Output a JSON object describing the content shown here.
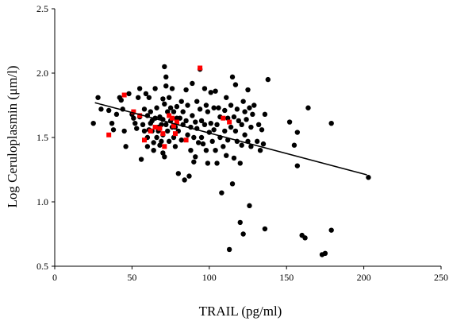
{
  "chart_data": {
    "type": "scatter",
    "title": "",
    "xlabel": "TRAIL (pg/ml)",
    "ylabel": "Log Ceruloplasmin (μm/l)",
    "xlim": [
      0,
      250
    ],
    "ylim": [
      0.5,
      2.5
    ],
    "x_ticks": [
      "0",
      "50",
      "100",
      "150",
      "200",
      "250"
    ],
    "y_ticks": [
      "0.5",
      "1.0",
      "1.5",
      "2.0",
      "2.5"
    ],
    "x_tick_values": [
      0,
      50,
      100,
      150,
      200,
      250
    ],
    "y_tick_values": [
      0.5,
      1.0,
      1.5,
      2.0,
      2.5
    ],
    "grid": false,
    "colors": {
      "black_series": "#000000",
      "red_series": "#ff0000"
    },
    "trendline": {
      "x": [
        26,
        202
      ],
      "y": [
        1.77,
        1.21
      ]
    },
    "series": [
      {
        "color": "#000000",
        "marker": "circle",
        "points": [
          [
            25,
            1.61
          ],
          [
            28,
            1.81
          ],
          [
            30,
            1.72
          ],
          [
            35,
            1.71
          ],
          [
            37,
            1.61
          ],
          [
            38,
            1.56
          ],
          [
            40,
            1.68
          ],
          [
            42,
            1.81
          ],
          [
            43,
            1.79
          ],
          [
            44,
            1.72
          ],
          [
            45,
            1.55
          ],
          [
            46,
            1.43
          ],
          [
            48,
            1.84
          ],
          [
            50,
            1.68
          ],
          [
            51,
            1.65
          ],
          [
            52,
            1.61
          ],
          [
            53,
            1.57
          ],
          [
            54,
            1.81
          ],
          [
            55,
            1.88
          ],
          [
            55,
            1.66
          ],
          [
            56,
            1.33
          ],
          [
            57,
            1.6
          ],
          [
            58,
            1.72
          ],
          [
            58,
            1.55
          ],
          [
            59,
            1.84
          ],
          [
            60,
            1.67
          ],
          [
            60,
            1.5
          ],
          [
            60,
            1.43
          ],
          [
            61,
            1.81
          ],
          [
            61,
            1.56
          ],
          [
            62,
            1.7
          ],
          [
            62,
            1.61
          ],
          [
            63,
            1.63
          ],
          [
            63,
            1.55
          ],
          [
            64,
            1.46
          ],
          [
            64,
            1.4
          ],
          [
            65,
            1.88
          ],
          [
            65,
            1.65
          ],
          [
            66,
            1.73
          ],
          [
            66,
            1.5
          ],
          [
            67,
            1.58
          ],
          [
            67,
            1.55
          ],
          [
            68,
            1.66
          ],
          [
            68,
            1.44
          ],
          [
            69,
            1.6
          ],
          [
            69,
            1.47
          ],
          [
            70,
            1.8
          ],
          [
            70,
            1.64
          ],
          [
            70,
            1.52
          ],
          [
            70,
            1.38
          ],
          [
            71,
            2.05
          ],
          [
            71,
            1.76
          ],
          [
            71,
            1.35
          ],
          [
            72,
            1.97
          ],
          [
            72,
            1.9
          ],
          [
            72,
            1.6
          ],
          [
            73,
            1.7
          ],
          [
            73,
            1.55
          ],
          [
            74,
            1.81
          ],
          [
            74,
            1.47
          ],
          [
            75,
            1.73
          ],
          [
            75,
            1.63
          ],
          [
            76,
            1.88
          ],
          [
            76,
            1.58
          ],
          [
            77,
            1.7
          ],
          [
            77,
            1.5
          ],
          [
            78,
            1.58
          ],
          [
            78,
            1.43
          ],
          [
            79,
            1.74
          ],
          [
            79,
            1.65
          ],
          [
            80,
            1.55
          ],
          [
            80,
            1.22
          ],
          [
            81,
            1.65
          ],
          [
            82,
            1.78
          ],
          [
            82,
            1.48
          ],
          [
            83,
            1.7
          ],
          [
            83,
            1.6
          ],
          [
            84,
            1.17
          ],
          [
            85,
            1.87
          ],
          [
            85,
            1.63
          ],
          [
            86,
            1.75
          ],
          [
            86,
            1.52
          ],
          [
            87,
            1.2
          ],
          [
            88,
            1.58
          ],
          [
            88,
            1.4
          ],
          [
            89,
            1.92
          ],
          [
            89,
            1.67
          ],
          [
            90,
            1.5
          ],
          [
            90,
            1.31
          ],
          [
            91,
            1.62
          ],
          [
            91,
            1.35
          ],
          [
            92,
            1.78
          ],
          [
            92,
            1.57
          ],
          [
            93,
            1.46
          ],
          [
            94,
            2.03
          ],
          [
            94,
            1.72
          ],
          [
            95,
            1.63
          ],
          [
            95,
            1.5
          ],
          [
            96,
            1.45
          ],
          [
            97,
            1.88
          ],
          [
            97,
            1.6
          ],
          [
            98,
            1.75
          ],
          [
            98,
            1.4
          ],
          [
            99,
            1.7
          ],
          [
            99,
            1.3
          ],
          [
            100,
            1.54
          ],
          [
            101,
            1.85
          ],
          [
            101,
            1.61
          ],
          [
            102,
            1.47
          ],
          [
            103,
            1.73
          ],
          [
            103,
            1.56
          ],
          [
            104,
            1.86
          ],
          [
            104,
            1.4
          ],
          [
            105,
            1.6
          ],
          [
            105,
            1.3
          ],
          [
            106,
            1.73
          ],
          [
            107,
            1.66
          ],
          [
            107,
            1.5
          ],
          [
            108,
            1.07
          ],
          [
            109,
            1.43
          ],
          [
            110,
            1.71
          ],
          [
            110,
            1.55
          ],
          [
            111,
            1.81
          ],
          [
            111,
            1.36
          ],
          [
            112,
            1.65
          ],
          [
            112,
            1.48
          ],
          [
            113,
            0.63
          ],
          [
            114,
            1.75
          ],
          [
            114,
            1.58
          ],
          [
            115,
            1.97
          ],
          [
            115,
            1.14
          ],
          [
            116,
            1.66
          ],
          [
            116,
            1.34
          ],
          [
            117,
            1.91
          ],
          [
            117,
            1.55
          ],
          [
            118,
            1.72
          ],
          [
            118,
            1.47
          ],
          [
            119,
            1.63
          ],
          [
            120,
            1.3
          ],
          [
            120,
            0.84
          ],
          [
            121,
            1.6
          ],
          [
            121,
            1.44
          ],
          [
            122,
            1.78
          ],
          [
            122,
            0.75
          ],
          [
            123,
            1.7
          ],
          [
            123,
            1.52
          ],
          [
            124,
            1.64
          ],
          [
            125,
            1.87
          ],
          [
            125,
            1.47
          ],
          [
            126,
            1.73
          ],
          [
            126,
            0.97
          ],
          [
            127,
            1.58
          ],
          [
            127,
            1.43
          ],
          [
            128,
            1.68
          ],
          [
            129,
            1.75
          ],
          [
            131,
            1.47
          ],
          [
            132,
            1.6
          ],
          [
            133,
            1.4
          ],
          [
            134,
            1.56
          ],
          [
            135,
            1.45
          ],
          [
            136,
            1.68
          ],
          [
            136,
            0.79
          ],
          [
            138,
            1.95
          ],
          [
            152,
            1.62
          ],
          [
            155,
            1.44
          ],
          [
            157,
            1.54
          ],
          [
            157,
            1.28
          ],
          [
            160,
            0.74
          ],
          [
            162,
            0.72
          ],
          [
            164,
            1.73
          ],
          [
            173,
            0.59
          ],
          [
            175,
            0.6
          ],
          [
            179,
            1.61
          ],
          [
            179,
            0.78
          ],
          [
            203,
            1.19
          ]
        ]
      },
      {
        "color": "#ff0000",
        "marker": "square",
        "points": [
          [
            35,
            1.52
          ],
          [
            45,
            1.83
          ],
          [
            51,
            1.7
          ],
          [
            55,
            1.67
          ],
          [
            58,
            1.48
          ],
          [
            62,
            1.55
          ],
          [
            65,
            1.58
          ],
          [
            68,
            1.57
          ],
          [
            70,
            1.53
          ],
          [
            71,
            1.43
          ],
          [
            74,
            1.67
          ],
          [
            76,
            1.65
          ],
          [
            77,
            1.59
          ],
          [
            78,
            1.53
          ],
          [
            79,
            1.62
          ],
          [
            85,
            1.48
          ],
          [
            94,
            2.04
          ],
          [
            109,
            1.65
          ],
          [
            113,
            1.62
          ]
        ]
      }
    ]
  }
}
